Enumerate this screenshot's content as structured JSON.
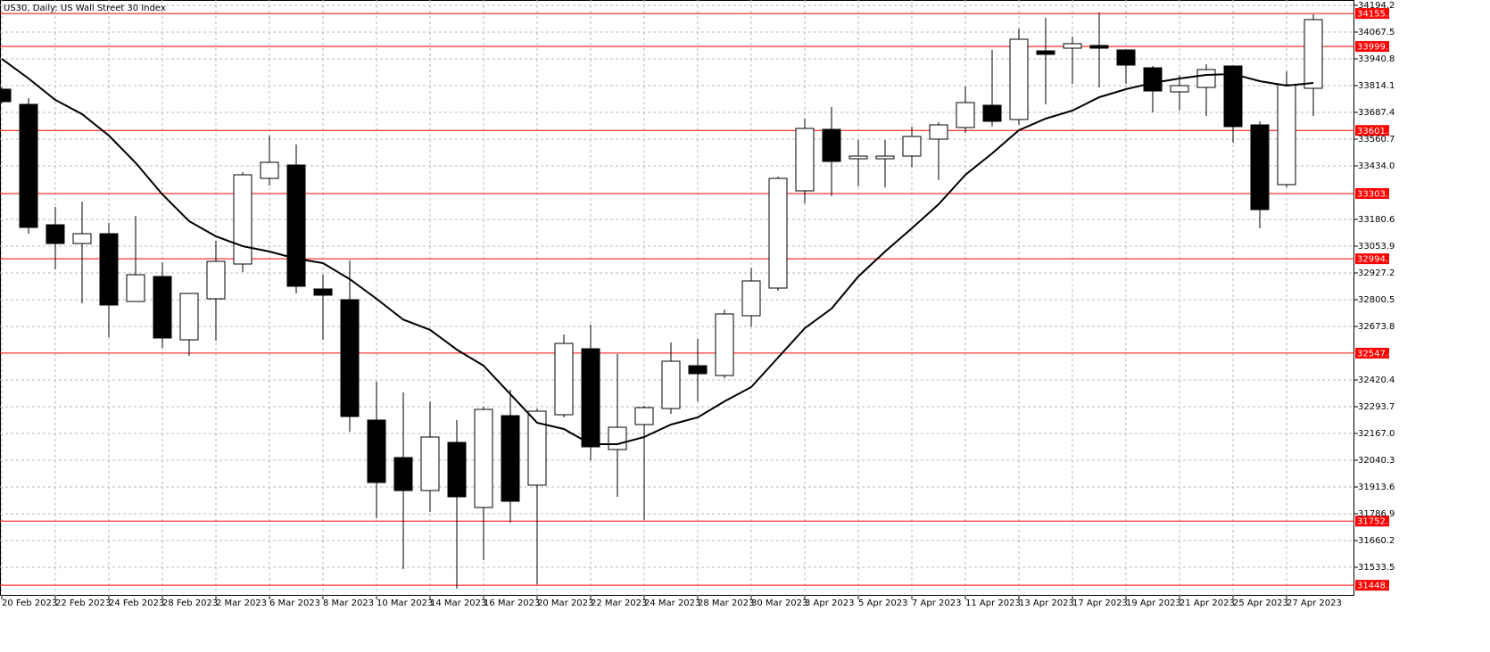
{
  "chart_data": {
    "type": "candlestick",
    "title": "US30, Daily:  US Wall Street 30 Index",
    "x": [
      "20 Feb 2023",
      null,
      "22 Feb 2023",
      null,
      "24 Feb 2023",
      null,
      "28 Feb 2023",
      null,
      "2 Mar 2023",
      null,
      "6 Mar 2023",
      null,
      "8 Mar 2023",
      null,
      "10 Mar 2023",
      null,
      "14 Mar 2023",
      null,
      "16 Mar 2023",
      null,
      "20 Mar 2023",
      null,
      "22 Mar 2023",
      null,
      "24 Mar 2023",
      null,
      "28 Mar 2023",
      null,
      "30 Mar 2023",
      null,
      "3 Apr 2023",
      null,
      "5 Apr 2023",
      null,
      "7 Apr 2023",
      null,
      "11 Apr 2023",
      null,
      "13 Apr 2023",
      null,
      "17 Apr 2023",
      null,
      "19 Apr 2023",
      null,
      "21 Apr 2023",
      null,
      "25 Apr 2023",
      null,
      "27 Apr 2023",
      null
    ],
    "open": [
      33797.2,
      33725.4,
      33155.2,
      33066.5,
      33113.0,
      32792.0,
      32910.3,
      32610.4,
      32804.7,
      32969.4,
      33374.9,
      33438.2,
      32851.2,
      32800.5,
      32230.4,
      32053.0,
      31896.7,
      32124.8,
      31816.4,
      32251.4,
      31922.1,
      32255.7,
      32568.2,
      32091.0,
      32209.2,
      32285.2,
      32488.0,
      32441.5,
      32724.5,
      32855.4,
      33315.8,
      33607.1,
      33467.8,
      33467.8,
      33480.4,
      33560.7,
      33615.6,
      33721.2,
      33653.6,
      33978.8,
      33991.4,
      34004.1,
      33983.0,
      33898.5,
      33784.5,
      33805.6,
      33907.0,
      33628.2,
      33345.3,
      33801.4
    ],
    "high": [
      33805.6,
      33754.9,
      33239.7,
      33265.0,
      33163.7,
      33197.5,
      32977.8,
      32830.0,
      33079.2,
      33404.4,
      33577.6,
      33535.3,
      32918.7,
      32986.3,
      32412.1,
      32361.5,
      32319.0,
      32230.4,
      32293.7,
      32374.0,
      32285.2,
      32635.8,
      32682.2,
      32542.8,
      32297.9,
      32597.7,
      32614.6,
      32754.0,
      32952.5,
      33383.3,
      33657.8,
      33712.7,
      33556.4,
      33556.4,
      33619.8,
      33640.9,
      33809.9,
      33983.0,
      34084.4,
      34135.0,
      34046.4,
      34160.4,
      33983.0,
      33907.0,
      33864.8,
      33915.4,
      33907.0,
      33645.1,
      33881.7,
      34151.9
    ],
    "low": [
      33729.6,
      33113.0,
      32944.1,
      32783.6,
      32623.1,
      32792.0,
      32572.4,
      32534.4,
      32606.2,
      32931.4,
      33341.1,
      32830.0,
      32610.4,
      32175.5,
      31765.9,
      31525.0,
      31795.4,
      31432.1,
      31567.3,
      31744.6,
      31453.2,
      32243.0,
      32040.3,
      31867.1,
      31757.4,
      32259.9,
      32319.0,
      32428.8,
      32673.8,
      32842.7,
      33256.6,
      33290.4,
      33336.8,
      33332.6,
      33429.8,
      33366.4,
      33590.2,
      33619.8,
      33628.2,
      33725.4,
      33822.5,
      33805.6,
      33822.5,
      33687.4,
      33695.8,
      33670.5,
      33543.8,
      33138.4,
      33332.6,
      33670.5
    ],
    "close": [
      33738.1,
      33142.6,
      33066.5,
      33113.0,
      32775.1,
      32918.7,
      32618.9,
      32830.0,
      32982.0,
      33391.8,
      33450.9,
      32863.8,
      32821.6,
      32247.3,
      31934.8,
      31896.7,
      32150.1,
      31867.1,
      32281.0,
      31846.0,
      32272.5,
      32593.5,
      32103.6,
      32196.5,
      32289.4,
      32509.1,
      32450.0,
      32732.9,
      32889.2,
      33374.9,
      33611.4,
      33455.1,
      33480.4,
      33480.4,
      33573.3,
      33628.2,
      33733.8,
      33645.1,
      34033.7,
      33961.9,
      34012.6,
      33991.4,
      33911.2,
      33788.7,
      33814.1,
      33890.1,
      33619.8,
      33227.0,
      33818.3,
      34126.6
    ],
    "bull_color": "#ffffff",
    "bear_color": "#000000",
    "outline_color": "#000000",
    "series": [
      {
        "color": "#000000",
        "values": [
          33940.8,
          33847.9,
          33746.5,
          33679.0,
          33577.6,
          33448.6,
          33298.8,
          33172.2,
          33100.4,
          33053.9,
          33028.6,
          32994.8,
          32973.6,
          32897.6,
          32804.7,
          32706.0,
          32657.8,
          32564.0,
          32488.0,
          32352.8,
          32217.7,
          32188.1,
          32116.3,
          32116.3,
          32150.1,
          32209.2,
          32243.0,
          32319.0,
          32386.6,
          32525.9,
          32665.3,
          32758.2,
          32910.3,
          33028.6,
          33138.4,
          33252.4,
          33391.8,
          33493.1,
          33603.0,
          33657.8,
          33695.8,
          33759.2,
          33797.2,
          33826.8,
          33847.9,
          33864.8,
          33869.0,
          33835.2,
          33814.1,
          33826.8
        ]
      }
    ],
    "levels": {
      "color": "#ff0000",
      "values": [
        34155.8,
        33999.5,
        33601.8,
        33303.2,
        32994.2,
        32547.4,
        31752.1,
        31448.3
      ]
    },
    "ylim": [
      31398.3,
      34219.5
    ],
    "yticks": [
      34194.2,
      34067.5,
      33940.8,
      33814.1,
      33687.4,
      33560.7,
      {
        "value": 33434,
        "label": "33434.0"
      },
      33180.6,
      33053.9,
      32927.2,
      32800.5,
      32673.8,
      32420.4,
      32293.7,
      {
        "value": 32167,
        "label": "32167.0"
      },
      32040.3,
      31913.6,
      31786.9,
      31660.2,
      31533.5
    ],
    "grid": true
  }
}
